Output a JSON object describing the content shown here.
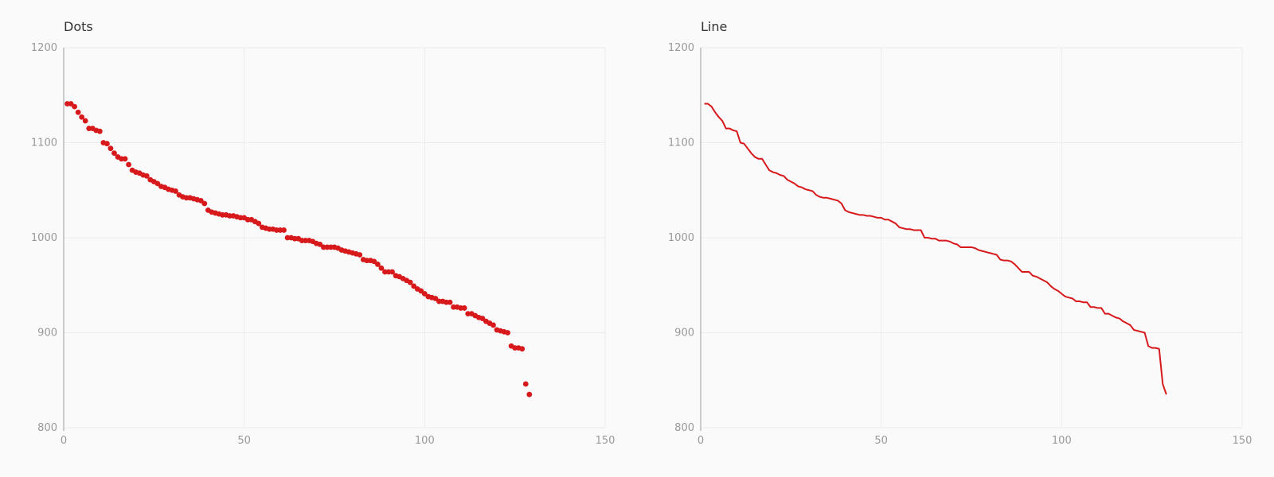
{
  "chart_data": [
    {
      "type": "scatter",
      "title": "Dots",
      "xlabel": "",
      "ylabel": "",
      "xlim": [
        0,
        150
      ],
      "ylim": [
        800,
        1200
      ],
      "xticks": [
        "0",
        "50",
        "100",
        "150"
      ],
      "yticks": [
        "800",
        "900",
        "1000",
        "1100",
        "1200"
      ],
      "grid": true,
      "legend": "none",
      "color": "#d7191c",
      "series": [
        {
          "x": [
            1,
            2,
            3,
            4,
            5,
            6,
            7,
            8,
            9,
            10,
            11,
            12,
            13,
            14,
            15,
            16,
            17,
            18,
            19,
            20,
            21,
            22,
            23,
            24,
            25,
            26,
            27,
            28,
            29,
            30,
            31,
            32,
            33,
            34,
            35,
            36,
            37,
            38,
            39,
            40,
            41,
            42,
            43,
            44,
            45,
            46,
            47,
            48,
            49,
            50,
            51,
            52,
            53,
            54,
            55,
            56,
            57,
            58,
            59,
            60,
            61,
            62,
            63,
            64,
            65,
            66,
            67,
            68,
            69,
            70,
            71,
            72,
            73,
            74,
            75,
            76,
            77,
            78,
            79,
            80,
            81,
            82,
            83,
            84,
            85,
            86,
            87,
            88,
            89,
            90,
            91,
            92,
            93,
            94,
            95,
            96,
            97,
            98,
            99,
            100,
            101,
            102,
            103,
            104,
            105,
            106,
            107,
            108,
            109,
            110,
            111,
            112,
            113,
            114,
            115,
            116,
            117,
            118,
            119,
            120,
            121,
            122,
            123,
            124,
            125,
            126,
            127,
            128,
            129
          ],
          "y": [
            1141,
            1141,
            1138,
            1132,
            1127,
            1123,
            1115,
            1115,
            1113,
            1112,
            1100,
            1099,
            1094,
            1089,
            1085,
            1083,
            1083,
            1077,
            1071,
            1069,
            1068,
            1066,
            1065,
            1061,
            1059,
            1057,
            1054,
            1053,
            1051,
            1050,
            1049,
            1045,
            1043,
            1042,
            1042,
            1041,
            1040,
            1039,
            1036,
            1029,
            1027,
            1026,
            1025,
            1024,
            1024,
            1023,
            1023,
            1022,
            1021,
            1021,
            1019,
            1019,
            1017,
            1015,
            1011,
            1010,
            1009,
            1009,
            1008,
            1008,
            1008,
            1000,
            1000,
            999,
            999,
            997,
            997,
            997,
            996,
            994,
            993,
            990,
            990,
            990,
            990,
            989,
            987,
            986,
            985,
            984,
            983,
            982,
            977,
            976,
            976,
            975,
            972,
            968,
            964,
            964,
            964,
            960,
            959,
            957,
            955,
            953,
            949,
            946,
            944,
            941,
            938,
            937,
            936,
            933,
            933,
            932,
            932,
            927,
            927,
            926,
            926,
            920,
            920,
            918,
            916,
            915,
            912,
            910,
            908,
            903,
            902,
            901,
            900,
            886,
            884,
            884,
            883,
            846,
            835
          ]
        }
      ]
    },
    {
      "type": "line",
      "title": "Line",
      "xlabel": "",
      "ylabel": "",
      "xlim": [
        0,
        150
      ],
      "ylim": [
        800,
        1200
      ],
      "xticks": [
        "0",
        "50",
        "100",
        "150"
      ],
      "yticks": [
        "800",
        "900",
        "1000",
        "1100",
        "1200"
      ],
      "grid": true,
      "legend": "none",
      "color": "#d7191c",
      "series": [
        {
          "x": [
            1,
            2,
            3,
            4,
            5,
            6,
            7,
            8,
            9,
            10,
            11,
            12,
            13,
            14,
            15,
            16,
            17,
            18,
            19,
            20,
            21,
            22,
            23,
            24,
            25,
            26,
            27,
            28,
            29,
            30,
            31,
            32,
            33,
            34,
            35,
            36,
            37,
            38,
            39,
            40,
            41,
            42,
            43,
            44,
            45,
            46,
            47,
            48,
            49,
            50,
            51,
            52,
            53,
            54,
            55,
            56,
            57,
            58,
            59,
            60,
            61,
            62,
            63,
            64,
            65,
            66,
            67,
            68,
            69,
            70,
            71,
            72,
            73,
            74,
            75,
            76,
            77,
            78,
            79,
            80,
            81,
            82,
            83,
            84,
            85,
            86,
            87,
            88,
            89,
            90,
            91,
            92,
            93,
            94,
            95,
            96,
            97,
            98,
            99,
            100,
            101,
            102,
            103,
            104,
            105,
            106,
            107,
            108,
            109,
            110,
            111,
            112,
            113,
            114,
            115,
            116,
            117,
            118,
            119,
            120,
            121,
            122,
            123,
            124,
            125,
            126,
            127,
            128,
            129
          ],
          "y": [
            1141,
            1141,
            1138,
            1132,
            1127,
            1123,
            1115,
            1115,
            1113,
            1112,
            1100,
            1099,
            1094,
            1089,
            1085,
            1083,
            1083,
            1077,
            1071,
            1069,
            1068,
            1066,
            1065,
            1061,
            1059,
            1057,
            1054,
            1053,
            1051,
            1050,
            1049,
            1045,
            1043,
            1042,
            1042,
            1041,
            1040,
            1039,
            1036,
            1029,
            1027,
            1026,
            1025,
            1024,
            1024,
            1023,
            1023,
            1022,
            1021,
            1021,
            1019,
            1019,
            1017,
            1015,
            1011,
            1010,
            1009,
            1009,
            1008,
            1008,
            1008,
            1000,
            1000,
            999,
            999,
            997,
            997,
            997,
            996,
            994,
            993,
            990,
            990,
            990,
            990,
            989,
            987,
            986,
            985,
            984,
            983,
            982,
            977,
            976,
            976,
            975,
            972,
            968,
            964,
            964,
            964,
            960,
            959,
            957,
            955,
            953,
            949,
            946,
            944,
            941,
            938,
            937,
            936,
            933,
            933,
            932,
            932,
            927,
            927,
            926,
            926,
            920,
            920,
            918,
            916,
            915,
            912,
            910,
            908,
            903,
            902,
            901,
            900,
            886,
            884,
            884,
            883,
            846,
            835
          ]
        }
      ]
    }
  ]
}
